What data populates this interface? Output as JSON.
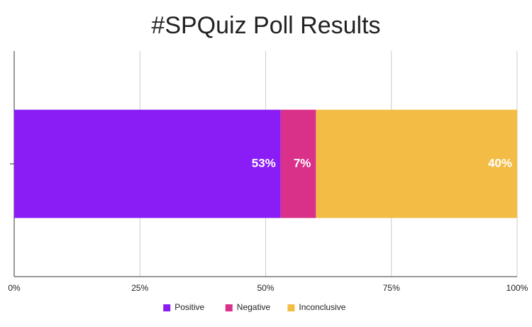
{
  "chart_data": {
    "type": "stacked_bar_horizontal",
    "title": "#SPQuiz Poll Results",
    "categories": [
      null
    ],
    "series": [
      {
        "name": "Positive",
        "color": "#8a1df6",
        "values": [
          53
        ],
        "value_labels": [
          "53%"
        ]
      },
      {
        "name": "Negative",
        "color": "#d9318a",
        "values": [
          7
        ],
        "value_labels": [
          "7%"
        ]
      },
      {
        "name": "Inconclusive",
        "color": "#f3bc45",
        "values": [
          40
        ],
        "value_labels": [
          "40%"
        ]
      }
    ],
    "xlim": [
      0,
      100
    ],
    "xticks": [
      {
        "value": 0,
        "label": "0%"
      },
      {
        "value": 25,
        "label": "25%"
      },
      {
        "value": 50,
        "label": "50%"
      },
      {
        "value": 75,
        "label": "75%"
      },
      {
        "value": 100,
        "label": "100%"
      }
    ],
    "grid": true,
    "legend": "bottom"
  }
}
